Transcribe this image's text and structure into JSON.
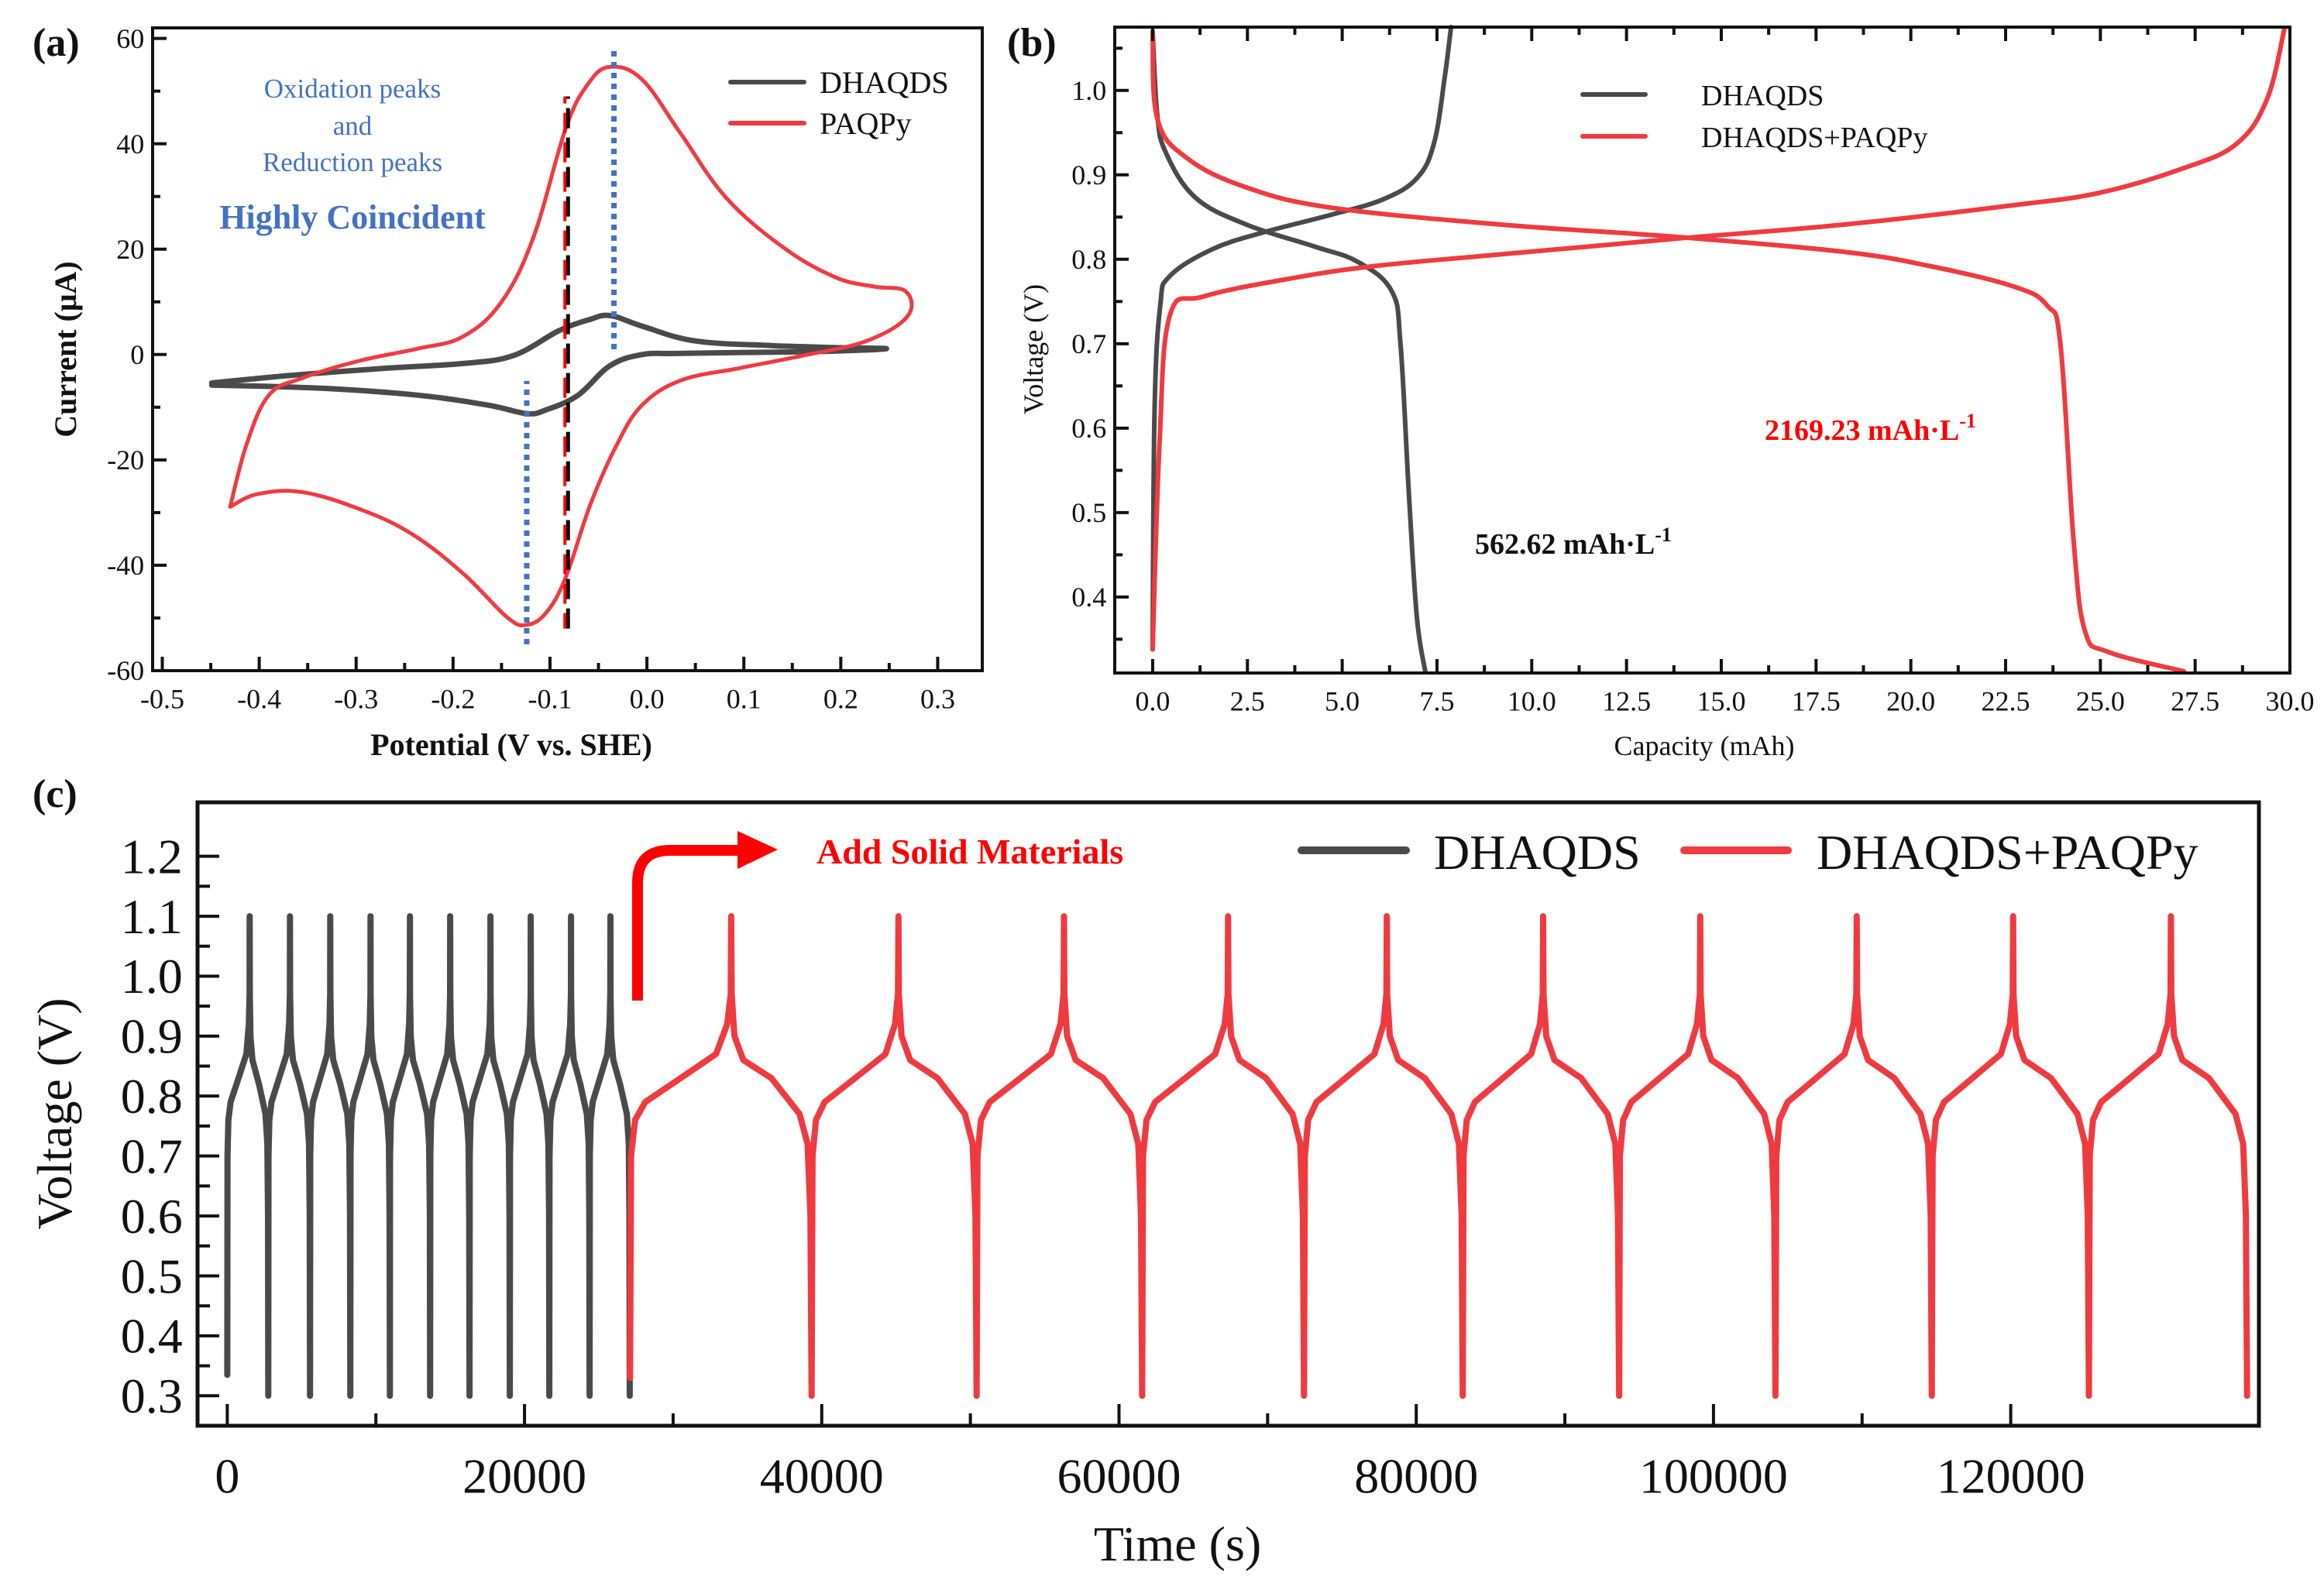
{
  "colors": {
    "dhaqds": "#4a4a4a",
    "red_series": "#ef3b40",
    "annotation_blue": "#4472c4",
    "annotation_red": "#ff0000",
    "axis": "#111111"
  },
  "chart_data": [
    {
      "id": "a",
      "type": "line",
      "panel_label": "(a)",
      "title": "",
      "xlabel": "Potential (V vs. SHE)",
      "ylabel": "Current (μA)",
      "xlim": [
        -0.51,
        0.346
      ],
      "ylim": [
        -60,
        62
      ],
      "xticks": [
        -0.5,
        -0.4,
        -0.3,
        -0.2,
        -0.1,
        0.0,
        0.1,
        0.2,
        0.3
      ],
      "xtick_labels": [
        "-0.5",
        "-0.4",
        "-0.3",
        "-0.2",
        "-0.1",
        "0.0",
        "0.1",
        "0.2",
        "0.3"
      ],
      "yticks": [
        -60,
        -40,
        -20,
        0,
        20,
        40,
        60
      ],
      "ytick_labels": [
        "-60",
        "-40",
        "-20",
        "0",
        "20",
        "40",
        "60"
      ],
      "grid": false,
      "legend_position": "top-right",
      "series": [
        {
          "name": "DHAQDS",
          "color_key": "dhaqds",
          "x": [
            -0.449,
            -0.37,
            -0.27,
            -0.19,
            -0.138,
            -0.091,
            -0.06,
            -0.038,
            -0.005,
            0.049,
            0.128,
            0.2,
            0.247,
            0.184,
            0.1,
            0.03,
            -0.005,
            -0.038,
            -0.071,
            -0.104,
            -0.124,
            -0.164,
            -0.237,
            -0.336,
            -0.449
          ],
          "y": [
            -5.4,
            -4.0,
            -2.6,
            -1.7,
            -0.2,
            4.5,
            6.6,
            7.4,
            5.4,
            2.6,
            1.7,
            1.3,
            1.1,
            0.6,
            0.4,
            0.2,
            0.0,
            -2.1,
            -7.7,
            -10.5,
            -11.2,
            -9.6,
            -7.7,
            -6.4,
            -5.8
          ]
        },
        {
          "name": "PAQPy",
          "color_key": "red_series",
          "x": [
            -0.43,
            -0.413,
            -0.39,
            -0.356,
            -0.297,
            -0.237,
            -0.19,
            -0.15,
            -0.117,
            -0.084,
            -0.061,
            -0.038,
            -0.005,
            0.035,
            0.082,
            0.141,
            0.194,
            0.234,
            0.267,
            0.269,
            0.227,
            0.161,
            0.095,
            0.035,
            -0.005,
            -0.031,
            -0.058,
            -0.084,
            -0.104,
            -0.124,
            -0.144,
            -0.19,
            -0.243,
            -0.297,
            -0.356,
            -0.402,
            -0.43
          ],
          "y": [
            -28.9,
            -17.0,
            -7.7,
            -4.5,
            -1.2,
            1.1,
            3.4,
            10.0,
            22.3,
            42.8,
            51.3,
            54.6,
            52.2,
            41.9,
            29.7,
            20.3,
            14.7,
            12.9,
            12.0,
            7.3,
            2.6,
            -0.2,
            -2.6,
            -4.9,
            -9.6,
            -17.1,
            -28.3,
            -42.4,
            -49.0,
            -51.3,
            -49.9,
            -41.5,
            -34.0,
            -29.3,
            -26.1,
            -26.5,
            -28.9
          ]
        }
      ],
      "reference_lines": [
        {
          "type": "dotted",
          "color_key": "annotation_blue",
          "x": -0.034,
          "y_range": [
            1,
            58
          ]
        },
        {
          "type": "dotted",
          "color_key": "annotation_blue",
          "x": -0.124,
          "y_range": [
            -55,
            -5
          ]
        },
        {
          "type": "dashed-red-black",
          "x": -0.083,
          "y_range": [
            -52,
            49
          ]
        }
      ],
      "annotations": [
        {
          "text": "Oxidation peaks",
          "style": "normal",
          "color_key": "annotation_blue"
        },
        {
          "text": "and",
          "style": "normal",
          "color_key": "annotation_blue"
        },
        {
          "text": "Reduction peaks",
          "style": "normal",
          "color_key": "annotation_blue"
        },
        {
          "text": "Highly Coincident",
          "style": "bold",
          "color_key": "annotation_blue"
        }
      ]
    },
    {
      "id": "b",
      "type": "line",
      "panel_label": "(b)",
      "title": "",
      "xlabel": "Capacity (mAh)",
      "ylabel": "Voltage (V)",
      "xlim": [
        -1.0,
        30.0
      ],
      "ylim": [
        0.31,
        1.075
      ],
      "xticks": [
        0.0,
        2.5,
        5.0,
        7.5,
        10.0,
        12.5,
        15.0,
        17.5,
        20.0,
        22.5,
        25.0,
        27.5,
        30.0
      ],
      "xtick_labels": [
        "0.0",
        "2.5",
        "5.0",
        "7.5",
        "10.0",
        "12.5",
        "15.0",
        "17.5",
        "20.0",
        "22.5",
        "25.0",
        "27.5",
        "30.0"
      ],
      "yticks": [
        0.4,
        0.5,
        0.6,
        0.7,
        0.8,
        0.9,
        1.0
      ],
      "ytick_labels": [
        "0.4",
        "0.5",
        "0.6",
        "0.7",
        "0.8",
        "0.9",
        "1.0"
      ],
      "grid": false,
      "legend_position": "top-center",
      "series": [
        {
          "name": "DHAQDS",
          "color_key": "dhaqds",
          "segments": [
            {
              "label": "charge",
              "x": [
                0.0,
                0.05,
                0.2,
                0.45,
                1.58,
                2.93,
                4.73,
                6.08,
                6.97,
                7.42,
                7.7,
                7.87
              ],
              "y": [
                0.338,
                0.62,
                0.745,
                0.78,
                0.812,
                0.832,
                0.853,
                0.871,
                0.896,
                0.937,
                1.014,
                1.075
              ]
            },
            {
              "label": "discharge",
              "x": [
                0.0,
                0.12,
                0.35,
                1.13,
                2.48,
                4.28,
                5.41,
                6.31,
                6.54,
                6.76,
                6.97,
                7.19
              ],
              "y": [
                1.07,
                0.972,
                0.926,
                0.873,
                0.841,
                0.815,
                0.797,
                0.762,
                0.698,
                0.522,
                0.376,
                0.312
              ]
            }
          ]
        },
        {
          "name": "DHAQDS+PAQPy",
          "color_key": "red_series",
          "segments": [
            {
              "label": "charge",
              "x": [
                0.0,
                0.18,
                0.45,
                1.35,
                3.6,
                5.86,
                9.22,
                13.7,
                18.2,
                22.7,
                25.0,
                27.2,
                28.6,
                29.4,
                29.85
              ],
              "y": [
                0.338,
                0.58,
                0.733,
                0.756,
                0.777,
                0.792,
                0.806,
                0.824,
                0.841,
                0.864,
                0.879,
                0.908,
                0.937,
                0.99,
                1.072
              ]
            },
            {
              "label": "discharge",
              "x": [
                0.0,
                0.12,
                0.9,
                2.48,
                4.73,
                9.22,
                13.7,
                18.2,
                20.5,
                22.7,
                23.6,
                23.95,
                24.3,
                24.6,
                25.2,
                27.2
              ],
              "y": [
                1.07,
                0.967,
                0.92,
                0.885,
                0.861,
                0.841,
                0.827,
                0.809,
                0.792,
                0.768,
                0.745,
                0.698,
                0.463,
                0.359,
                0.335,
                0.312
              ]
            }
          ]
        }
      ],
      "annotations": [
        {
          "text": "2169.23 mAh·L",
          "superscript": "-1",
          "color_key": "annotation_red",
          "style": "bold"
        },
        {
          "text": "562.62 mAh·L",
          "superscript": "-1",
          "color_key": "axis",
          "style": "bold"
        }
      ]
    },
    {
      "id": "c",
      "type": "line",
      "panel_label": "(c)",
      "title": "",
      "xlabel": "Time (s)",
      "ylabel": "Voltage (V)",
      "xlim": [
        -2000,
        136700
      ],
      "ylim": [
        0.25,
        1.29
      ],
      "xticks": [
        0,
        20000,
        40000,
        60000,
        80000,
        100000,
        120000
      ],
      "xtick_labels": [
        "0",
        "20000",
        "40000",
        "60000",
        "80000",
        "100000",
        "120000"
      ],
      "yticks": [
        0.3,
        0.4,
        0.5,
        0.6,
        0.7,
        0.8,
        0.9,
        1.0,
        1.1,
        1.2
      ],
      "ytick_labels": [
        "0.3",
        "0.4",
        "0.5",
        "0.6",
        "0.7",
        "0.8",
        "0.9",
        "1.0",
        "1.1",
        "1.2"
      ],
      "grid": false,
      "legend_position": "top-right",
      "voltage_limits": {
        "upper": 1.1,
        "lower": 0.3
      },
      "series": [
        {
          "name": "DHAQDS",
          "color_key": "dhaqds",
          "start_time": 0,
          "start_voltage": 0.335,
          "charge_end_times": [
            1510,
            4220,
            6930,
            9640,
            12290,
            15000,
            17710,
            20420,
            23130,
            25780
          ],
          "discharge_end_times": [
            2760,
            5570,
            8280,
            10940,
            13650,
            16300,
            19010,
            21670,
            24380,
            27080
          ],
          "plateau": {
            "charge_mid": 0.83,
            "discharge_mid": 0.8
          }
        },
        {
          "name": "DHAQDS+PAQPy",
          "color_key": "red_series",
          "start_time": 27100,
          "start_voltage": 0.33,
          "charge_end_times": [
            33910,
            45160,
            56300,
            67340,
            78020,
            88540,
            99110,
            109640,
            120160,
            130780
          ],
          "discharge_end_times": [
            39320,
            50420,
            61560,
            72450,
            83130,
            93650,
            104170,
            114690,
            125260,
            135900
          ],
          "plateau": {
            "charge_mid": 0.83,
            "discharge_mid": 0.81
          }
        }
      ],
      "annotations": [
        {
          "text": "Add Solid Materials",
          "color_key": "annotation_red",
          "style": "bold",
          "arrow": "bent-right"
        }
      ]
    }
  ]
}
